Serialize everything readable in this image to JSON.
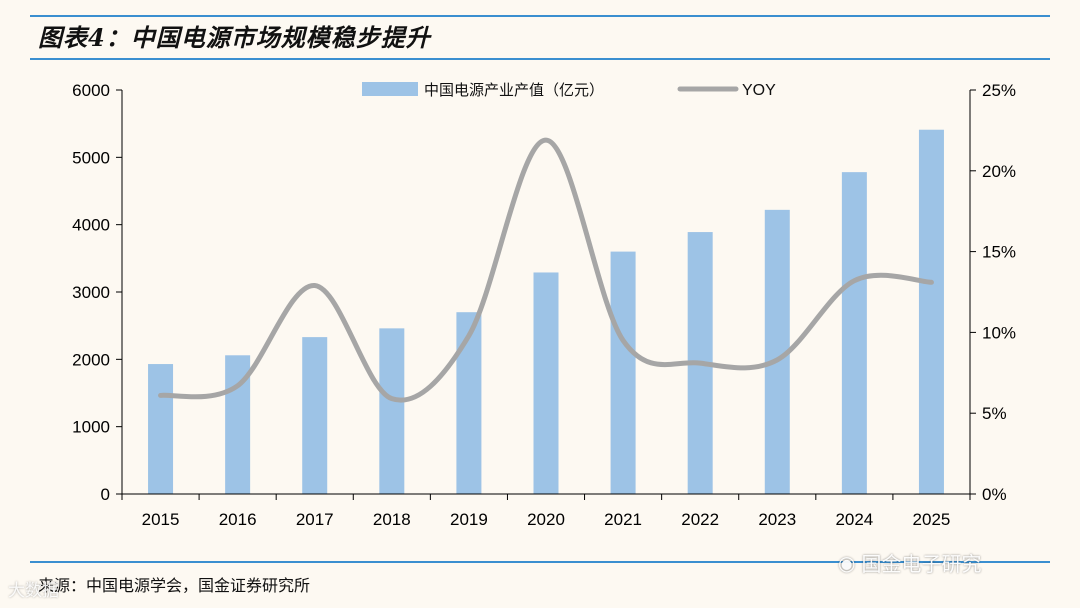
{
  "title": "图表4：中国电源市场规模稳步提升",
  "source": "来源：中国电源学会，国金证券研究所",
  "watermark_right": "国金电子研究",
  "watermark_left": "大数据",
  "colors": {
    "bar": "#9dc3e6",
    "line": "#a6a6a6",
    "rule": "#3a8fd0"
  },
  "chart_data": {
    "type": "bar",
    "categories": [
      "2015",
      "2016",
      "2017",
      "2018",
      "2019",
      "2020",
      "2021",
      "2022",
      "2023",
      "2024",
      "2025"
    ],
    "series": [
      {
        "name": "中国电源产业产值（亿元）",
        "type": "bar",
        "axis": "left",
        "values": [
          1930,
          2060,
          2330,
          2460,
          2700,
          3290,
          3600,
          3890,
          4220,
          4780,
          5410
        ]
      },
      {
        "name": "YOY",
        "type": "line",
        "axis": "right",
        "unit": "%",
        "values": [
          6.1,
          6.7,
          12.9,
          5.9,
          9.8,
          21.9,
          9.5,
          8.1,
          8.3,
          13.2,
          13.1
        ]
      }
    ],
    "y_left": {
      "min": 0,
      "max": 6000,
      "ticks": [
        "0",
        "1000",
        "2000",
        "3000",
        "4000",
        "5000",
        "6000"
      ]
    },
    "y_right": {
      "min": 0,
      "max": 25,
      "ticks": [
        "0%",
        "5%",
        "10%",
        "15%",
        "20%",
        "25%"
      ]
    },
    "legend": [
      "中国电源产业产值（亿元）",
      "YOY"
    ],
    "legend_position": "top-center",
    "grid": false
  }
}
